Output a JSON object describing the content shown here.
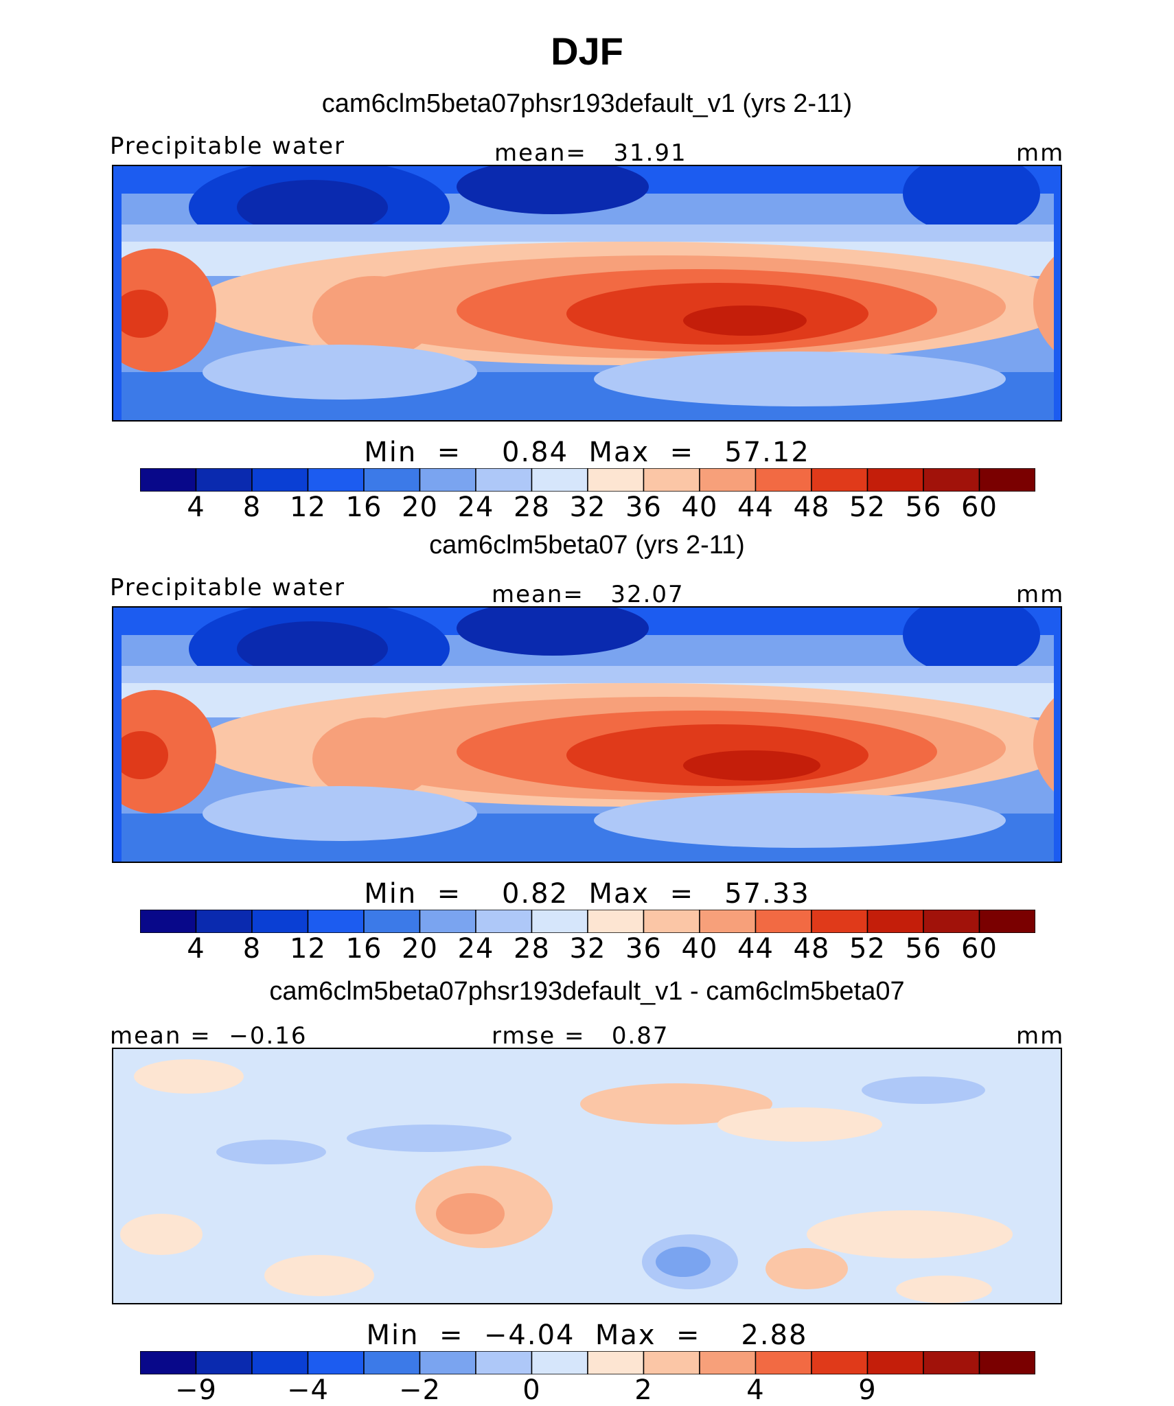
{
  "title": "DJF",
  "colors": {
    "abs_scale": [
      "#08088a",
      "#0a2aaf",
      "#0a3fd4",
      "#1c5cf0",
      "#3c7ae8",
      "#7aa4f0",
      "#aec8f8",
      "#d6e6fb",
      "#fde5d2",
      "#fbc6a6",
      "#f7a07a",
      "#f26a43",
      "#e03a1a",
      "#c41e0a",
      "#a1120a",
      "#7a0000"
    ],
    "diff_scale": [
      "#08088a",
      "#0a2aaf",
      "#0a3fd4",
      "#1c5cf0",
      "#3c7ae8",
      "#7aa4f0",
      "#aec8f8",
      "#d6e6fb",
      "#fde5d2",
      "#fbc6a6",
      "#f7a07a",
      "#f26a43",
      "#e03a1a",
      "#c41e0a",
      "#a1120a",
      "#7a0000"
    ]
  },
  "panels": [
    {
      "title": "cam6clm5beta07phsr193default_v1 (yrs 2-11)",
      "left_label": "Precipitable water",
      "center_label": "mean=   31.91",
      "units": "mm",
      "minmax": "Min  =    0.84  Max  =   57.12",
      "ticks": [
        "4",
        "8",
        "12",
        "16",
        "20",
        "24",
        "28",
        "32",
        "36",
        "40",
        "44",
        "48",
        "52",
        "56",
        "60"
      ]
    },
    {
      "title": "cam6clm5beta07 (yrs 2-11)",
      "left_label": "Precipitable water",
      "center_label": "mean=   32.07",
      "units": "mm",
      "minmax": "Min  =    0.82  Max  =   57.33",
      "ticks": [
        "4",
        "8",
        "12",
        "16",
        "20",
        "24",
        "28",
        "32",
        "36",
        "40",
        "44",
        "48",
        "52",
        "56",
        "60"
      ]
    },
    {
      "title": "cam6clm5beta07phsr193default_v1 - cam6clm5beta07",
      "left_label": "mean =  −0.16",
      "center_label": "rmse =   0.87",
      "units": "mm",
      "minmax": "Min  =  −4.04  Max  =    2.88",
      "ticks": [
        "−9",
        "",
        "−4",
        "",
        "−2",
        "",
        "0",
        "",
        "2",
        "",
        "4",
        "",
        "9"
      ]
    }
  ],
  "chart_data": [
    {
      "type": "heatmap",
      "title": "cam6clm5beta07phsr193default_v1 (yrs 2-11)",
      "variable": "Precipitable water",
      "units": "mm",
      "mean": 31.91,
      "min": 0.84,
      "max": 57.12,
      "contour_levels": [
        4,
        8,
        12,
        16,
        20,
        24,
        28,
        32,
        36,
        40,
        44,
        48,
        52,
        56,
        60
      ]
    },
    {
      "type": "heatmap",
      "title": "cam6clm5beta07 (yrs 2-11)",
      "variable": "Precipitable water",
      "units": "mm",
      "mean": 32.07,
      "min": 0.82,
      "max": 57.33,
      "contour_levels": [
        4,
        8,
        12,
        16,
        20,
        24,
        28,
        32,
        36,
        40,
        44,
        48,
        52,
        56,
        60
      ]
    },
    {
      "type": "heatmap",
      "title": "cam6clm5beta07phsr193default_v1 - cam6clm5beta07",
      "units": "mm",
      "mean": -0.16,
      "rmse": 0.87,
      "min": -4.04,
      "max": 2.88,
      "tick_labels": [
        "−9",
        "−4",
        "−2",
        "0",
        "2",
        "4",
        "9"
      ]
    }
  ]
}
